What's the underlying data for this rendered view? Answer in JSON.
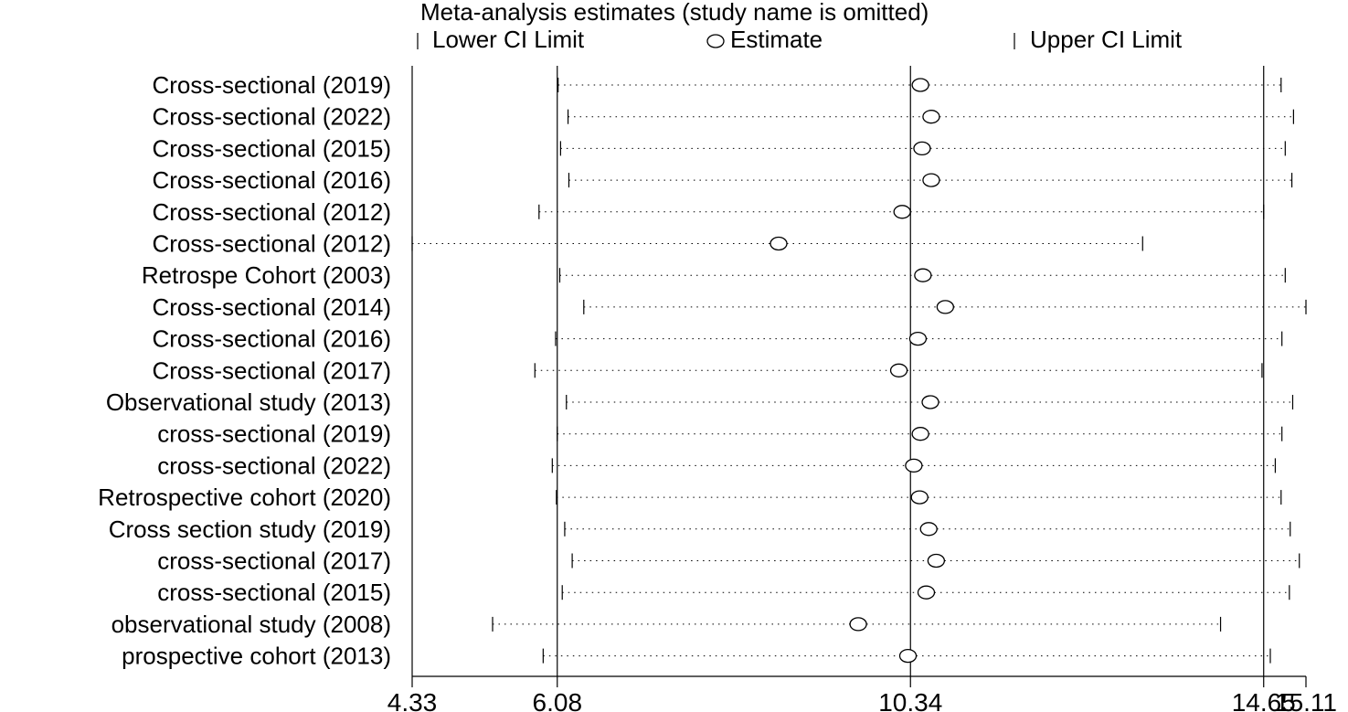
{
  "chart_data": {
    "type": "forest",
    "title": "Meta-analysis estimates (study name is omitted)",
    "legend": {
      "lower": "Lower CI Limit",
      "estimate": "Estimate",
      "upper": "Upper CI Limit"
    },
    "x_ticks": [
      "4.33",
      "6.08",
      "10.34",
      "14.65",
      "15.11"
    ],
    "reference_lines": [
      6.08,
      10.34,
      14.6
    ],
    "xlim": [
      4.33,
      15.11
    ],
    "studies": [
      {
        "label": "Cross-sectional (2019)",
        "lower": 6.09,
        "estimate": 10.46,
        "upper": 14.81
      },
      {
        "label": "Cross-sectional (2022)",
        "lower": 6.21,
        "estimate": 10.59,
        "upper": 14.96
      },
      {
        "label": "Cross-sectional (2015)",
        "lower": 6.12,
        "estimate": 10.48,
        "upper": 14.86
      },
      {
        "label": "Cross-sectional (2016)",
        "lower": 6.22,
        "estimate": 10.59,
        "upper": 14.94
      },
      {
        "label": "Cross-sectional (2012)",
        "lower": 5.86,
        "estimate": 10.24,
        "upper": 14.6
      },
      {
        "label": "Cross-sectional  (2012)",
        "lower": 4.33,
        "estimate": 8.75,
        "upper": 13.14
      },
      {
        "label": "Retrospe Cohort  (2003)",
        "lower": 6.11,
        "estimate": 10.49,
        "upper": 14.86
      },
      {
        "label": "Cross-sectional (2014)",
        "lower": 6.4,
        "estimate": 10.76,
        "upper": 15.11
      },
      {
        "label": "Cross-sectional (2016)",
        "lower": 6.06,
        "estimate": 10.43,
        "upper": 14.82
      },
      {
        "label": "Cross-sectional  (2017)",
        "lower": 5.81,
        "estimate": 10.2,
        "upper": 14.58
      },
      {
        "label": "Observational study (2013)",
        "lower": 6.19,
        "estimate": 10.58,
        "upper": 14.95
      },
      {
        "label": "cross-sectional (2019)",
        "lower": 6.08,
        "estimate": 10.46,
        "upper": 14.82
      },
      {
        "label": "cross-sectional (2022)",
        "lower": 6.02,
        "estimate": 10.38,
        "upper": 14.74
      },
      {
        "label": "Retrospective cohort (2020)",
        "lower": 6.07,
        "estimate": 10.45,
        "upper": 14.81
      },
      {
        "label": "Cross section  study (2019)",
        "lower": 6.17,
        "estimate": 10.56,
        "upper": 14.92
      },
      {
        "label": "cross-sectional (2017)",
        "lower": 6.26,
        "estimate": 10.65,
        "upper": 15.03
      },
      {
        "label": "cross-sectional (2015)",
        "lower": 6.14,
        "estimate": 10.53,
        "upper": 14.91
      },
      {
        "label": "observational study (2008)",
        "lower": 5.3,
        "estimate": 9.71,
        "upper": 14.08
      },
      {
        "label": "prospective cohort (2013)",
        "lower": 5.91,
        "estimate": 10.31,
        "upper": 14.68
      }
    ]
  }
}
